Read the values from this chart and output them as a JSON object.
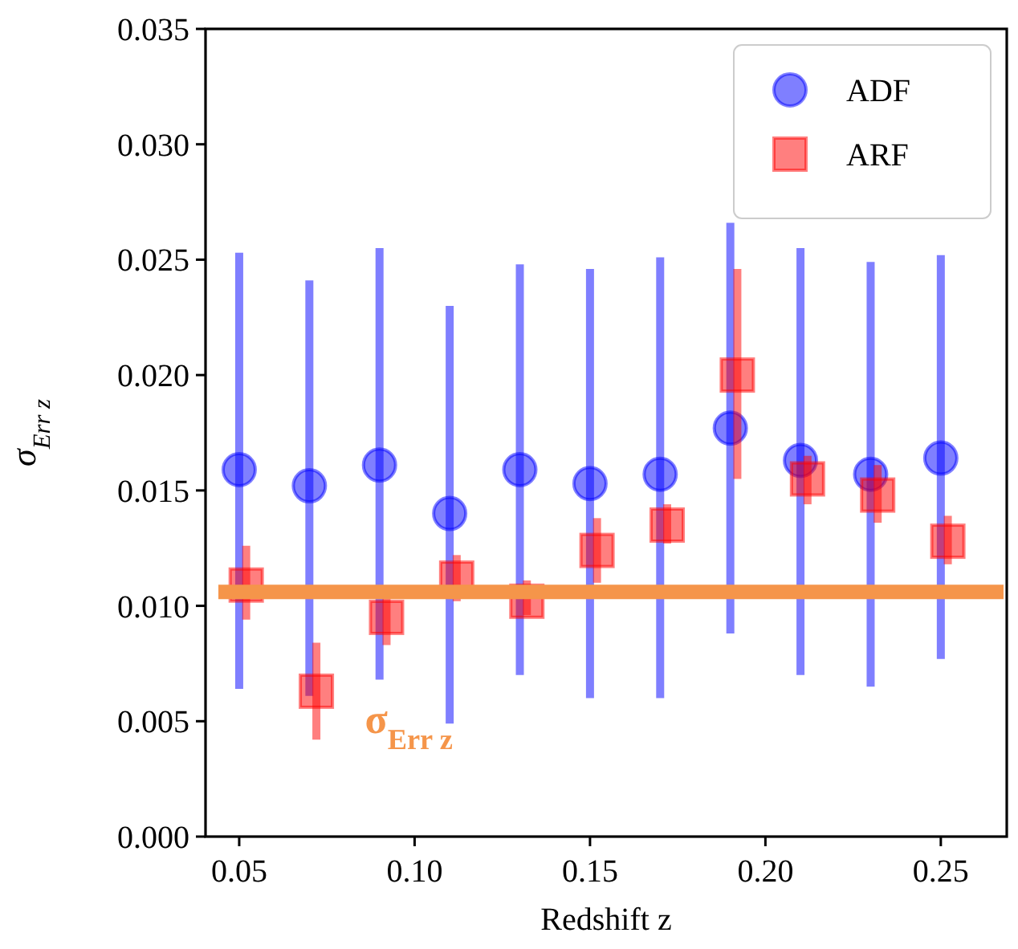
{
  "chart_data": {
    "type": "scatter",
    "xlabel": "Redshift z",
    "ylabel": "σ$_{Err z}$",
    "xlim": [
      0.0404,
      0.2688
    ],
    "ylim": [
      0,
      0.035
    ],
    "xticks": [
      0.05,
      {
        "value": 0.1,
        "label": "0.10"
      },
      0.15,
      {
        "value": 0.2,
        "label": "0.20"
      },
      0.25
    ],
    "yticks": [
      {
        "value": 0,
        "label": "0.000"
      },
      {
        "value": 0.005,
        "label": "0.005"
      },
      {
        "value": 0.01,
        "label": "0.010"
      },
      {
        "value": 0.015,
        "label": "0.015"
      },
      {
        "value": 0.02,
        "label": "0.020"
      },
      {
        "value": 0.025,
        "label": "0.025"
      },
      {
        "value": 0.03,
        "label": "0.030"
      },
      {
        "value": 0.035,
        "label": "0.035"
      }
    ],
    "legend": "top right",
    "grid": false,
    "series": [
      {
        "name": "ADF",
        "color": "#0000ff",
        "marker": "circle",
        "x": [
          0.05,
          0.07,
          0.09,
          0.11,
          0.13,
          0.15,
          0.17,
          0.19,
          0.21,
          0.23,
          0.25
        ],
        "values": [
          0.0159,
          0.0152,
          0.0161,
          0.014,
          0.0159,
          0.0153,
          0.0157,
          0.0177,
          0.0163,
          0.0157,
          0.0164
        ],
        "errors": [
          [
            0.0064,
            0.0253
          ],
          [
            0.0061,
            0.0241
          ],
          [
            0.0068,
            0.0255
          ],
          [
            0.0049,
            0.023
          ],
          [
            0.007,
            0.0248
          ],
          [
            0.006,
            0.0246
          ],
          [
            0.006,
            0.0251
          ],
          [
            0.0088,
            0.0266
          ],
          [
            0.007,
            0.0255
          ],
          [
            0.0065,
            0.0249
          ],
          [
            0.0077,
            0.0252
          ]
        ]
      },
      {
        "name": "ARF",
        "color": "#ff0000",
        "marker": "square",
        "x": [
          0.052,
          0.072,
          0.092,
          0.112,
          0.132,
          0.152,
          0.172,
          0.192,
          0.212,
          0.232,
          0.252
        ],
        "values": [
          0.0109,
          0.0063,
          0.0095,
          0.0112,
          0.0102,
          0.0124,
          0.0135,
          0.02,
          0.0155,
          0.0148,
          0.0128
        ],
        "errors": [
          [
            0.0094,
            0.0126
          ],
          [
            0.0042,
            0.0084
          ],
          [
            0.0083,
            0.0103
          ],
          [
            0.0102,
            0.0122
          ],
          [
            0.0096,
            0.0111
          ],
          [
            0.011,
            0.0138
          ],
          [
            0.0127,
            0.0144
          ],
          [
            0.0155,
            0.0246
          ],
          [
            0.0144,
            0.0165
          ],
          [
            0.0136,
            0.0161
          ],
          [
            0.0118,
            0.0139
          ]
        ]
      }
    ],
    "ref_lines": [
      {
        "axis": "y",
        "value": 0.0106,
        "label": "σ$_{Err z}$",
        "color": "#f5954a"
      }
    ]
  }
}
